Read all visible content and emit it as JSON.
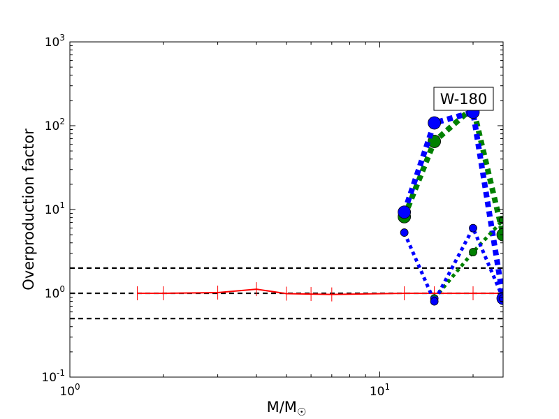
{
  "chart_data": {
    "type": "line",
    "title": "",
    "xlabel": "M/M",
    "xlabel_sub": "☉",
    "ylabel": "Overproduction factor",
    "xscale": "log",
    "yscale": "log",
    "xlim": [
      1,
      25
    ],
    "ylim": [
      0.1,
      1000
    ],
    "grid": false,
    "legend": "none",
    "x_ticks": [
      {
        "value": 1,
        "base": "10",
        "exp": "0"
      },
      {
        "value": 10,
        "base": "10",
        "exp": "1"
      }
    ],
    "y_ticks": [
      {
        "value": 0.1,
        "base": "10",
        "exp": "-1"
      },
      {
        "value": 1,
        "base": "10",
        "exp": "0"
      },
      {
        "value": 10,
        "base": "10",
        "exp": "1"
      },
      {
        "value": 100,
        "base": "10",
        "exp": "2"
      },
      {
        "value": 1000,
        "base": "10",
        "exp": "3"
      }
    ],
    "annotation": "W-180",
    "reference_lines": [
      {
        "y": 2.0,
        "color": "#000000",
        "style": "dashed"
      },
      {
        "y": 1.0,
        "color": "#000000",
        "style": "dashed"
      },
      {
        "y": 0.5,
        "color": "#000000",
        "style": "dashed"
      }
    ],
    "series": [
      {
        "color": "#ff0000",
        "style": "solid",
        "marker": "vline",
        "points": [
          [
            1.65,
            1.0
          ],
          [
            2.0,
            1.0
          ],
          [
            3.0,
            1.02
          ],
          [
            4.0,
            1.12
          ],
          [
            5.0,
            0.99
          ],
          [
            6.0,
            0.98
          ],
          [
            7.0,
            0.97
          ],
          [
            12.0,
            1.0
          ],
          [
            15.0,
            1.0
          ],
          [
            20.0,
            1.0
          ],
          [
            25.0,
            1.0
          ]
        ]
      },
      {
        "color": "#008000",
        "style": "dotted-thick",
        "marker": "circle-large",
        "points": [
          [
            12.0,
            8.2
          ],
          [
            15.0,
            65.0
          ],
          [
            20.0,
            165.0
          ],
          [
            25.0,
            5.0
          ]
        ]
      },
      {
        "color": "#0000ff",
        "style": "dotted-thick",
        "marker": "circle-large",
        "points": [
          [
            12.0,
            9.3
          ],
          [
            15.0,
            108.0
          ],
          [
            20.0,
            145.0
          ],
          [
            25.0,
            0.87
          ]
        ]
      },
      {
        "color": "#008000",
        "style": "dotted",
        "marker": "circle-small",
        "points": [
          [
            15.0,
            0.87
          ],
          [
            20.0,
            3.1
          ],
          [
            25.0,
            7.5
          ]
        ]
      },
      {
        "color": "#0000ff",
        "style": "dotted",
        "marker": "circle-small",
        "points": [
          [
            12.0,
            5.3
          ],
          [
            15.0,
            0.8
          ],
          [
            20.0,
            6.0
          ],
          [
            25.0,
            0.87
          ]
        ]
      }
    ]
  }
}
